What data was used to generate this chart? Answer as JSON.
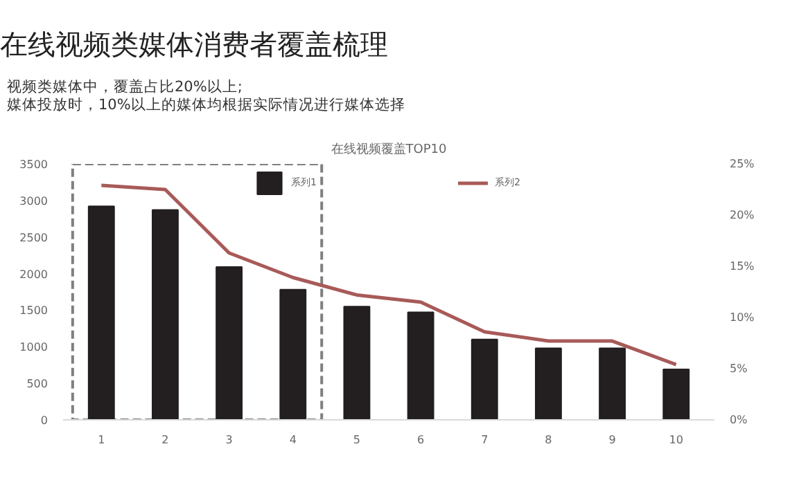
{
  "chart_data": {
    "type": "bar",
    "title": "在线视频类媒体消费者覆盖梳理",
    "subtitle": "视频类媒体中，覆盖占比20%以上;\n媒体投放时，10%以上的媒体均根据实际情况进行媒体选择",
    "annotations": [
      "在线视频覆盖TOP10"
    ],
    "categories": [
      "1",
      "2",
      "3",
      "4",
      "5",
      "6",
      "7",
      "8",
      "9",
      "10"
    ],
    "series": [
      {
        "name": "系列1",
        "color": "#231f20",
        "values": [
          2920,
          2870,
          2090,
          1780,
          1550,
          1470,
          1100,
          980,
          980,
          690
        ]
      },
      {
        "name": "系列2",
        "type": "line",
        "axis": "y2",
        "color": "#a85a58",
        "values": [
          22.9,
          22.5,
          16.3,
          13.9,
          12.2,
          11.5,
          8.6,
          7.7,
          7.7,
          5.4
        ]
      }
    ],
    "ylim": [
      0,
      3500
    ],
    "yticks": [
      0,
      500,
      1000,
      1500,
      2000,
      2500,
      3000,
      3500
    ],
    "y2lim": [
      0,
      25
    ],
    "y2ticks": [
      {
        "value": 0,
        "label": "0%"
      },
      {
        "value": 5,
        "label": "5%"
      },
      {
        "value": 10,
        "label": "10%"
      },
      {
        "value": 15,
        "label": "15%"
      },
      {
        "value": 20,
        "label": "20%"
      },
      {
        "value": 25,
        "label": "25%"
      }
    ],
    "grid": false,
    "legend": "top",
    "marker": "none",
    "line_style": "solid"
  }
}
